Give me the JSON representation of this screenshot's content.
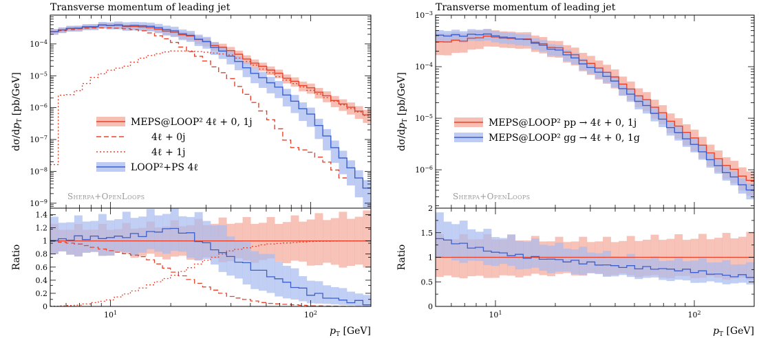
{
  "chart_data": [
    {
      "type": "line",
      "title": "Transverse momentum of leading jet",
      "xlabel": "p_T [GeV]",
      "ylabel": "dσ/dp_T [pb/GeV]",
      "ratio_ylabel": "Ratio",
      "xscale": "log",
      "yscale": "log",
      "xlim": [
        5,
        200
      ],
      "ylim": [
        7e-10,
        0.0008
      ],
      "ratio_ylim": [
        0,
        1.5
      ],
      "x_ticks": [
        {
          "v": 10,
          "label": "10^1"
        },
        {
          "v": 100,
          "label": "10^2"
        }
      ],
      "y_ticks": [
        {
          "v": 0.0001,
          "label": "10^-4"
        },
        {
          "v": 1e-05,
          "label": "10^-5"
        },
        {
          "v": 1e-06,
          "label": "10^-6"
        },
        {
          "v": 1e-07,
          "label": "10^-7"
        },
        {
          "v": 1e-08,
          "label": "10^-8"
        },
        {
          "v": 1e-09,
          "label": "10^-9"
        }
      ],
      "ratio_ticks": [
        {
          "v": 0,
          "label": "0"
        },
        {
          "v": 0.2,
          "label": "0.2"
        },
        {
          "v": 0.4,
          "label": "0.4"
        },
        {
          "v": 0.6,
          "label": "0.6"
        },
        {
          "v": 0.8,
          "label": "0.8"
        },
        {
          "v": 1.0,
          "label": "1"
        },
        {
          "v": 1.2,
          "label": "1.2"
        },
        {
          "v": 1.4,
          "label": "1.4"
        }
      ],
      "watermark": "Sherpa+OpenLoops",
      "legend_position": "center-left",
      "series": [
        {
          "name": "MEPS@LOOP² 4ℓ + 0, 1j",
          "color": "#e8412a",
          "style": "solid",
          "band": true,
          "band_color": "#f4a89a",
          "x": [
            5,
            6,
            7,
            8,
            10,
            12,
            15,
            20,
            30,
            40,
            50,
            70,
            100,
            150,
            200
          ],
          "y": [
            0.00023,
            0.00028,
            0.00032,
            0.00035,
            0.00038,
            0.00037,
            0.00033,
            0.00025,
            0.00012,
            6e-05,
            3e-05,
            1.1e-05,
            4e-06,
            1.2e-06,
            5e-07
          ],
          "band_rel": [
            0.2,
            0.2,
            0.2,
            0.2,
            0.2,
            0.2,
            0.2,
            0.25,
            0.3,
            0.3,
            0.3,
            0.3,
            0.35,
            0.4,
            0.45
          ]
        },
        {
          "name": "4ℓ + 0j",
          "color": "#e8412a",
          "style": "dashed",
          "band": false,
          "x": [
            5,
            6,
            7,
            8,
            10,
            12,
            15,
            20,
            30,
            40,
            50,
            60,
            70,
            80,
            100,
            120,
            150
          ],
          "y": [
            0.00023,
            0.00027,
            0.0003,
            0.00032,
            0.00032,
            0.0003,
            0.00025,
            0.00013,
            3e-05,
            8e-06,
            2e-06,
            6e-07,
            2e-07,
            6e-08,
            4e-08,
            2e-08,
            5e-09
          ]
        },
        {
          "name": "4ℓ + 1j",
          "color": "#e8412a",
          "style": "dotted",
          "band": false,
          "x": [
            5.1,
            5.5,
            6,
            6.5,
            7,
            8,
            10,
            12,
            15,
            20,
            25,
            30,
            40,
            50,
            70,
            100,
            150,
            200
          ],
          "y": [
            1e-09,
            3e-06,
            2e-06,
            3e-06,
            3.5e-06,
            8e-06,
            1.5e-05,
            2e-05,
            4e-05,
            6e-05,
            6e-05,
            5.5e-05,
            4.5e-05,
            2.5e-05,
            9e-06,
            3.5e-06,
            1.1e-06,
            5e-07
          ]
        },
        {
          "name": "LOOP²+PS 4ℓ",
          "color": "#3a5fcd",
          "style": "solid",
          "band": true,
          "band_color": "#a8bbf0",
          "x": [
            5,
            6,
            7,
            8,
            10,
            12,
            15,
            20,
            30,
            40,
            50,
            70,
            100,
            150,
            200
          ],
          "y": [
            0.00023,
            0.00028,
            0.00033,
            0.00036,
            0.00038,
            0.00039,
            0.00036,
            0.00028,
            0.00012,
            4e-05,
            1.5e-05,
            4e-06,
            6e-07,
            2e-08,
            2e-09
          ],
          "band_rel": [
            0.2,
            0.2,
            0.2,
            0.2,
            0.25,
            0.3,
            0.3,
            0.35,
            0.4,
            0.45,
            0.5,
            0.55,
            0.6,
            0.7,
            0.8
          ]
        }
      ],
      "ratio_series": [
        {
          "name": "MEPS@LOOP² 4ℓ + 0, 1j",
          "color": "#e8412a",
          "style": "solid",
          "x": [
            5,
            200
          ],
          "y": [
            1.0,
            1.0
          ],
          "band_x": [
            5,
            10,
            20,
            40,
            70,
            100,
            200
          ],
          "band_lo": [
            0.8,
            0.8,
            0.75,
            0.7,
            0.7,
            0.65,
            0.6
          ],
          "band_hi": [
            1.2,
            1.2,
            1.25,
            1.3,
            1.3,
            1.35,
            1.4
          ]
        },
        {
          "name": "4ℓ + 0j",
          "color": "#e8412a",
          "style": "dashed",
          "x": [
            5,
            7,
            10,
            15,
            20,
            30,
            40,
            60,
            100,
            150
          ],
          "y": [
            1.0,
            0.95,
            0.85,
            0.75,
            0.55,
            0.3,
            0.15,
            0.05,
            0.01,
            0.0
          ]
        },
        {
          "name": "4ℓ + 1j",
          "color": "#e8412a",
          "style": "dotted",
          "x": [
            5,
            7,
            10,
            15,
            20,
            30,
            40,
            60,
            100,
            150
          ],
          "y": [
            0.0,
            0.02,
            0.1,
            0.3,
            0.45,
            0.7,
            0.85,
            0.95,
            0.99,
            1.0
          ]
        },
        {
          "name": "LOOP²+PS 4ℓ",
          "color": "#3a5fcd",
          "style": "solid",
          "x": [
            5,
            7,
            10,
            15,
            20,
            25,
            30,
            40,
            60,
            100,
            150,
            200
          ],
          "y": [
            1.0,
            1.05,
            1.05,
            1.1,
            1.2,
            1.1,
            0.95,
            0.75,
            0.5,
            0.2,
            0.08,
            0.05
          ],
          "band_x": [
            5,
            10,
            20,
            30,
            50,
            70,
            100,
            200
          ],
          "band_lo": [
            0.8,
            0.8,
            0.85,
            0.7,
            0.3,
            0.15,
            0.05,
            0.0
          ],
          "band_hi": [
            1.3,
            1.35,
            1.45,
            1.35,
            0.9,
            0.7,
            0.4,
            0.15
          ]
        }
      ]
    },
    {
      "type": "line",
      "title": "Transverse momentum of leading jet",
      "xlabel": "p_T [GeV]",
      "ylabel": "dσ/dp_T [pb/GeV]",
      "ratio_ylabel": "Ratio",
      "xscale": "log",
      "yscale": "log",
      "xlim": [
        5,
        200
      ],
      "ylim": [
        1.8e-07,
        0.001
      ],
      "ratio_ylim": [
        0,
        2
      ],
      "x_ticks": [
        {
          "v": 10,
          "label": "10^1"
        },
        {
          "v": 100,
          "label": "10^2"
        }
      ],
      "y_ticks": [
        {
          "v": 0.001,
          "label": "10^-3"
        },
        {
          "v": 0.0001,
          "label": "10^-4"
        },
        {
          "v": 1e-05,
          "label": "10^-5"
        },
        {
          "v": 1e-06,
          "label": "10^-6"
        }
      ],
      "ratio_ticks": [
        {
          "v": 0,
          "label": "0"
        },
        {
          "v": 0.5,
          "label": "0.5"
        },
        {
          "v": 1.0,
          "label": "1"
        },
        {
          "v": 1.5,
          "label": "1.5"
        },
        {
          "v": 2.0,
          "label": "2"
        }
      ],
      "watermark": "Sherpa+OpenLoops",
      "legend_position": "center-left",
      "series": [
        {
          "name": "MEPS@LOOP² pp → 4ℓ + 0, 1j",
          "color": "#e8412a",
          "style": "solid",
          "band": true,
          "band_color": "#f4a89a",
          "x": [
            5,
            6,
            7,
            8,
            10,
            12,
            15,
            20,
            30,
            40,
            50,
            70,
            100,
            150,
            200
          ],
          "y": [
            0.00028,
            0.00031,
            0.00034,
            0.00036,
            0.00038,
            0.00036,
            0.00032,
            0.00024,
            0.00012,
            6e-05,
            3.3e-05,
            1.2e-05,
            4e-06,
            1.1e-06,
            5.5e-07
          ],
          "band_rel": [
            0.45,
            0.45,
            0.4,
            0.4,
            0.35,
            0.35,
            0.35,
            0.35,
            0.4,
            0.4,
            0.4,
            0.4,
            0.45,
            0.45,
            0.5
          ]
        },
        {
          "name": "MEPS@LOOP² gg → 4ℓ + 0, 1g",
          "color": "#3a5fcd",
          "style": "solid",
          "band": true,
          "band_color": "#a8bbf0",
          "x": [
            5,
            6,
            7,
            8,
            10,
            12,
            15,
            20,
            30,
            40,
            50,
            70,
            100,
            150,
            200
          ],
          "y": [
            0.00038,
            0.0004,
            0.00042,
            0.00042,
            0.0004,
            0.00037,
            0.00031,
            0.00022,
            0.0001,
            5e-05,
            2.6e-05,
            9e-06,
            3e-06,
            8e-07,
            3.5e-07
          ],
          "band_rel": [
            0.25,
            0.25,
            0.25,
            0.25,
            0.25,
            0.25,
            0.25,
            0.25,
            0.25,
            0.25,
            0.3,
            0.3,
            0.3,
            0.3,
            0.35
          ]
        }
      ],
      "ratio_series": [
        {
          "name": "MEPS@LOOP² pp → 4ℓ + 0, 1j",
          "color": "#e8412a",
          "style": "solid",
          "x": [
            5,
            200
          ],
          "y": [
            1.0,
            1.0
          ],
          "band_x": [
            5,
            10,
            20,
            40,
            70,
            100,
            200
          ],
          "band_lo": [
            0.6,
            0.6,
            0.65,
            0.65,
            0.6,
            0.6,
            0.55
          ],
          "band_hi": [
            1.4,
            1.4,
            1.35,
            1.35,
            1.4,
            1.4,
            1.45
          ]
        },
        {
          "name": "MEPS@LOOP² gg → 4ℓ + 0, 1g",
          "color": "#3a5fcd",
          "style": "solid",
          "x": [
            5,
            7,
            10,
            15,
            20,
            30,
            40,
            60,
            100,
            150,
            200
          ],
          "y": [
            1.4,
            1.25,
            1.1,
            1.0,
            0.95,
            0.88,
            0.82,
            0.78,
            0.72,
            0.62,
            0.62
          ],
          "band_x": [
            5,
            10,
            20,
            40,
            70,
            100,
            200
          ],
          "band_lo": [
            1.0,
            0.85,
            0.7,
            0.62,
            0.55,
            0.5,
            0.45
          ],
          "band_hi": [
            1.85,
            1.45,
            1.25,
            1.05,
            0.95,
            0.95,
            0.85
          ]
        }
      ]
    }
  ]
}
